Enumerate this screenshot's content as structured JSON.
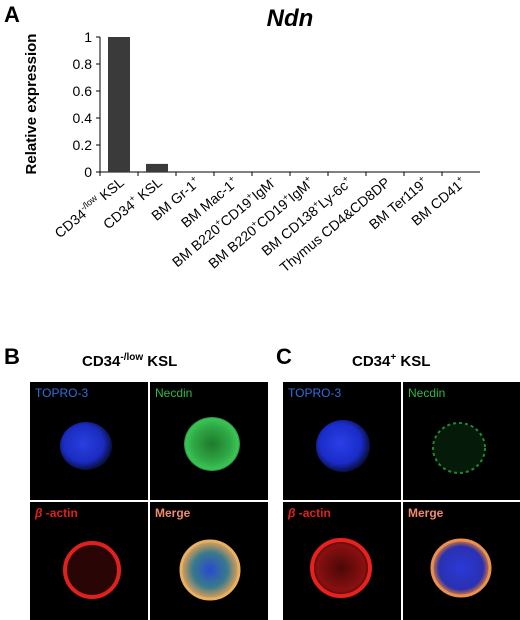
{
  "panels": {
    "a": "A",
    "b": "B",
    "c": "C"
  },
  "chart_data": {
    "type": "bar",
    "title": "Ndn",
    "ylabel": "Relative expression",
    "xlabel": "",
    "ylim": [
      0,
      1
    ],
    "yticks": [
      "0",
      "0.2",
      "0.4",
      "0.6",
      "0.8",
      "1"
    ],
    "categories": [
      {
        "base": "CD34",
        "sup": "-/low",
        "rest": " KSL"
      },
      {
        "base": "CD34",
        "sup": "+",
        "rest": " KSL"
      },
      {
        "base": "BM Gr-1",
        "sup": "+",
        "rest": ""
      },
      {
        "base": "BM Mac-1",
        "sup": "+",
        "rest": ""
      },
      {
        "base": "BM B220",
        "sup": "+",
        "rest": "CD19",
        "sup2": "+",
        "rest2": "IgM",
        "sup3": "-"
      },
      {
        "base": "BM B220",
        "sup": "+",
        "rest": "CD19",
        "sup2": "+",
        "rest2": "IgM",
        "sup3": "+"
      },
      {
        "base": "BM CD138",
        "sup": "+",
        "rest": "Ly-6c",
        "sup2": "+",
        "rest2": ""
      },
      {
        "base": "Thymus CD4&CD8DP",
        "sup": "",
        "rest": ""
      },
      {
        "base": "BM Ter119",
        "sup": "+",
        "rest": ""
      },
      {
        "base": "BM CD41",
        "sup": "+",
        "rest": ""
      }
    ],
    "values": [
      1.0,
      0.06,
      0,
      0,
      0,
      0,
      0,
      0,
      0,
      0
    ],
    "bar_color": "#3a3a3a"
  },
  "microscopy": {
    "b_title": {
      "base": "CD34",
      "sup": "-/low",
      "rest": " KSL"
    },
    "c_title": {
      "base": "CD34",
      "sup": "+",
      "rest": " KSL"
    },
    "labels": {
      "topro": "TOPRO-3",
      "necdin": "Necdin",
      "actin_greek": "β",
      "actin_rest": " -actin",
      "merge": "Merge"
    },
    "colors": {
      "topro": "#2f6fdc",
      "necdin": "#2eb84a",
      "actin": "#e0201e",
      "merge": "#f08a6a"
    }
  }
}
